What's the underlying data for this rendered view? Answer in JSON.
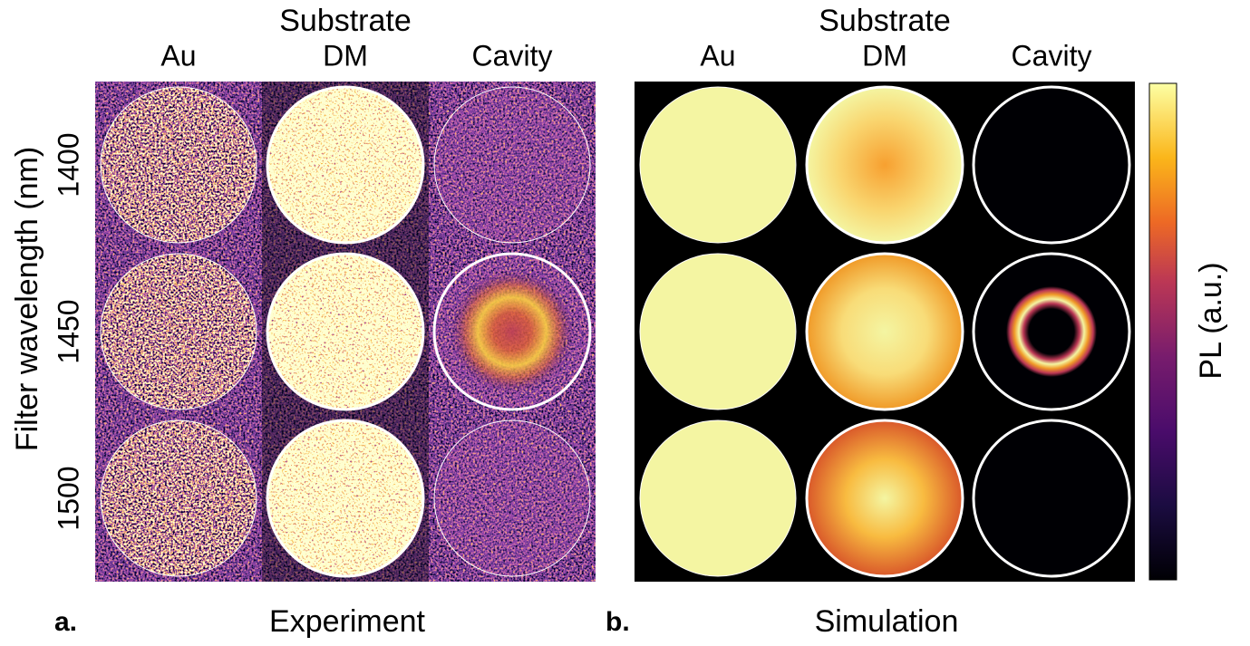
{
  "panels": [
    {
      "label": "a.",
      "title": "Experiment",
      "header": "Substrate",
      "columns": [
        "Au",
        "DM",
        "Cavity"
      ]
    },
    {
      "label": "b.",
      "title": "Simulation",
      "header": "Substrate",
      "columns": [
        "Au",
        "DM",
        "Cavity"
      ]
    }
  ],
  "y_axis": {
    "title": "Filter wavelength (nm)",
    "rows": [
      "1400",
      "1450",
      "1500"
    ]
  },
  "colorbar": {
    "label": "PL (a.u.)"
  }
}
